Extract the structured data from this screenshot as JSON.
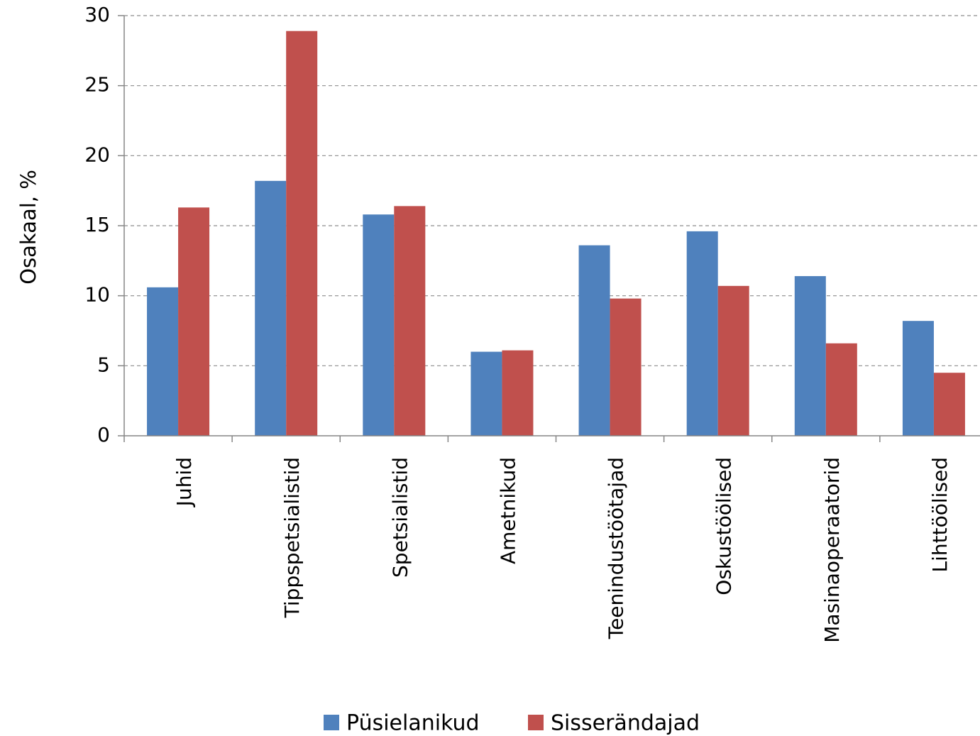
{
  "chart_data": {
    "type": "bar",
    "title": "",
    "xlabel": "",
    "ylabel": "Osakaal, %",
    "ylim": [
      0,
      30
    ],
    "yticks": [
      0,
      5,
      10,
      15,
      20,
      25,
      30
    ],
    "grid": true,
    "legend_position": "bottom",
    "categories": [
      "Juhid",
      "Tippspetsialistid",
      "Spetsialistid",
      "Ametnikud",
      "Teenindustöötajad",
      "Oskustöölised",
      "Masinaoperaatorid",
      "Lihttöölised"
    ],
    "series": [
      {
        "name": "Püsielanikud",
        "color": "#4f81bd",
        "values": [
          10.6,
          18.2,
          15.8,
          6.0,
          13.6,
          14.6,
          11.4,
          8.2
        ]
      },
      {
        "name": "Sisserändajad",
        "color": "#c0504d",
        "values": [
          16.3,
          28.9,
          16.4,
          6.1,
          9.8,
          10.7,
          6.6,
          4.5
        ]
      }
    ]
  }
}
